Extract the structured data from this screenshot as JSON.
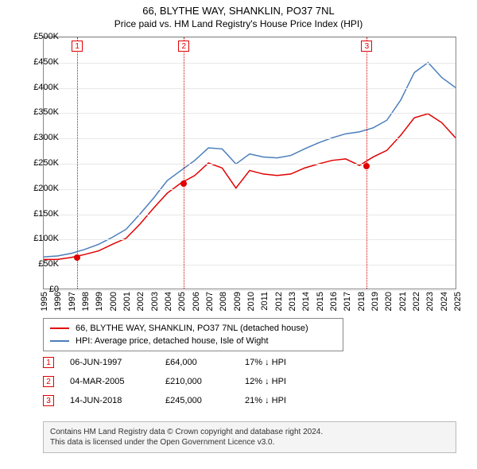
{
  "title_line1": "66, BLYTHE WAY, SHANKLIN, PO37 7NL",
  "title_line2": "Price paid vs. HM Land Registry's House Price Index (HPI)",
  "chart": {
    "type": "line",
    "background_color": "#ffffff",
    "grid_color": "#e8e8e8",
    "border_color": "#888888",
    "y_axis": {
      "min": 0,
      "max": 500000,
      "tick_step": 50000,
      "prefix": "£",
      "suffix": "K",
      "label_fontsize": 11
    },
    "x_axis": {
      "min": 1995,
      "max": 2025,
      "tick_step": 1,
      "label_fontsize": 11
    },
    "series": [
      {
        "name": "66, BLYTHE WAY, SHANKLIN, PO37 7NL (detached house)",
        "color": "#e00000",
        "line_width": 1.5,
        "points": [
          [
            1995,
            58000
          ],
          [
            1996,
            58000
          ],
          [
            1997,
            62000
          ],
          [
            1998,
            68000
          ],
          [
            1999,
            75000
          ],
          [
            2000,
            88000
          ],
          [
            2001,
            100000
          ],
          [
            2002,
            128000
          ],
          [
            2003,
            160000
          ],
          [
            2004,
            190000
          ],
          [
            2005,
            210000
          ],
          [
            2006,
            225000
          ],
          [
            2007,
            250000
          ],
          [
            2008,
            240000
          ],
          [
            2009,
            200000
          ],
          [
            2010,
            235000
          ],
          [
            2011,
            228000
          ],
          [
            2012,
            225000
          ],
          [
            2013,
            228000
          ],
          [
            2014,
            240000
          ],
          [
            2015,
            248000
          ],
          [
            2016,
            255000
          ],
          [
            2017,
            258000
          ],
          [
            2018,
            245000
          ],
          [
            2019,
            262000
          ],
          [
            2020,
            275000
          ],
          [
            2021,
            305000
          ],
          [
            2022,
            340000
          ],
          [
            2023,
            348000
          ],
          [
            2024,
            330000
          ],
          [
            2025,
            300000
          ]
        ]
      },
      {
        "name": "HPI: Average price, detached house, Isle of Wight",
        "color": "#4a7ebb",
        "line_width": 1.5,
        "points": [
          [
            1995,
            63000
          ],
          [
            1996,
            65000
          ],
          [
            1997,
            70000
          ],
          [
            1998,
            78000
          ],
          [
            1999,
            88000
          ],
          [
            2000,
            102000
          ],
          [
            2001,
            118000
          ],
          [
            2002,
            148000
          ],
          [
            2003,
            180000
          ],
          [
            2004,
            215000
          ],
          [
            2005,
            235000
          ],
          [
            2006,
            255000
          ],
          [
            2007,
            280000
          ],
          [
            2008,
            278000
          ],
          [
            2009,
            248000
          ],
          [
            2010,
            268000
          ],
          [
            2011,
            262000
          ],
          [
            2012,
            260000
          ],
          [
            2013,
            265000
          ],
          [
            2014,
            278000
          ],
          [
            2015,
            290000
          ],
          [
            2016,
            300000
          ],
          [
            2017,
            308000
          ],
          [
            2018,
            312000
          ],
          [
            2019,
            320000
          ],
          [
            2020,
            335000
          ],
          [
            2021,
            375000
          ],
          [
            2022,
            430000
          ],
          [
            2023,
            450000
          ],
          [
            2024,
            420000
          ],
          [
            2025,
            400000
          ]
        ]
      }
    ],
    "markers": [
      {
        "id": "1",
        "year": 1997.43,
        "price": 64000
      },
      {
        "id": "2",
        "year": 2005.17,
        "price": 210000
      },
      {
        "id": "3",
        "year": 2018.45,
        "price": 245000
      }
    ]
  },
  "legend": {
    "items": [
      {
        "color": "#e00000",
        "label": "66, BLYTHE WAY, SHANKLIN, PO37 7NL (detached house)"
      },
      {
        "color": "#4a7ebb",
        "label": "HPI: Average price, detached house, Isle of Wight"
      }
    ]
  },
  "sales": [
    {
      "id": "1",
      "date": "06-JUN-1997",
      "price": "£64,000",
      "hpi": "17% ↓ HPI"
    },
    {
      "id": "2",
      "date": "04-MAR-2005",
      "price": "£210,000",
      "hpi": "12% ↓ HPI"
    },
    {
      "id": "3",
      "date": "14-JUN-2018",
      "price": "£245,000",
      "hpi": "21% ↓ HPI"
    }
  ],
  "footer_line1": "Contains HM Land Registry data © Crown copyright and database right 2024.",
  "footer_line2": "This data is licensed under the Open Government Licence v3.0."
}
